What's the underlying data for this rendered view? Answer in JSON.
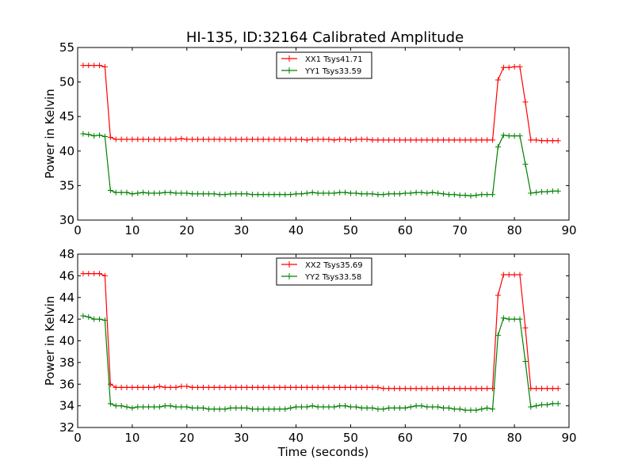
{
  "figure": {
    "title": "HI-135, ID:32164 Calibrated Amplitude",
    "background": "#ffffff"
  },
  "colors": {
    "series_a": "#ff0000",
    "series_b": "#008000",
    "axis": "#000000"
  },
  "chart_data": [
    {
      "type": "line",
      "title": "HI-135, ID:32164 Calibrated Amplitude",
      "xlabel": "",
      "ylabel": "Power in Kelvin",
      "xlim": [
        0,
        90
      ],
      "ylim": [
        30,
        55
      ],
      "xticks": [
        0,
        10,
        20,
        30,
        40,
        50,
        60,
        70,
        80,
        90
      ],
      "yticks": [
        30,
        35,
        40,
        45,
        50,
        55
      ],
      "grid": false,
      "legend_position": "top-center",
      "marker": "plus",
      "x": [
        1,
        2,
        3,
        4,
        5,
        6,
        7,
        8,
        9,
        10,
        11,
        12,
        13,
        14,
        15,
        16,
        17,
        18,
        19,
        20,
        21,
        22,
        23,
        24,
        25,
        26,
        27,
        28,
        29,
        30,
        31,
        32,
        33,
        34,
        35,
        36,
        37,
        38,
        39,
        40,
        41,
        42,
        43,
        44,
        45,
        46,
        47,
        48,
        49,
        50,
        51,
        52,
        53,
        54,
        55,
        56,
        57,
        58,
        59,
        60,
        61,
        62,
        63,
        64,
        65,
        66,
        67,
        68,
        69,
        70,
        71,
        72,
        73,
        74,
        75,
        76,
        77,
        78,
        79,
        80,
        81,
        82,
        83,
        84,
        85,
        86,
        87,
        88
      ],
      "series": [
        {
          "name": "XX1 Tsys41.71",
          "color": "#ff0000",
          "values": [
            52.4,
            52.4,
            52.4,
            52.4,
            52.2,
            42.0,
            41.7,
            41.7,
            41.7,
            41.7,
            41.7,
            41.7,
            41.7,
            41.7,
            41.7,
            41.7,
            41.7,
            41.7,
            41.8,
            41.7,
            41.7,
            41.7,
            41.7,
            41.7,
            41.7,
            41.7,
            41.7,
            41.7,
            41.7,
            41.7,
            41.7,
            41.7,
            41.7,
            41.7,
            41.7,
            41.7,
            41.7,
            41.7,
            41.7,
            41.7,
            41.7,
            41.6,
            41.7,
            41.7,
            41.7,
            41.7,
            41.6,
            41.7,
            41.7,
            41.6,
            41.7,
            41.7,
            41.7,
            41.6,
            41.6,
            41.6,
            41.6,
            41.6,
            41.6,
            41.6,
            41.6,
            41.6,
            41.6,
            41.6,
            41.6,
            41.6,
            41.6,
            41.6,
            41.6,
            41.6,
            41.6,
            41.6,
            41.6,
            41.6,
            41.6,
            41.6,
            50.3,
            52.1,
            52.1,
            52.2,
            52.2,
            47.1,
            41.6,
            41.6,
            41.5,
            41.5,
            41.5,
            41.5
          ]
        },
        {
          "name": "YY1 Tsys33.59",
          "color": "#008000",
          "values": [
            42.5,
            42.4,
            42.2,
            42.3,
            42.1,
            34.3,
            34.0,
            34.0,
            34.0,
            33.8,
            33.9,
            34.0,
            33.9,
            33.9,
            33.9,
            34.0,
            34.0,
            33.9,
            33.9,
            33.9,
            33.8,
            33.8,
            33.8,
            33.8,
            33.8,
            33.7,
            33.7,
            33.8,
            33.8,
            33.8,
            33.8,
            33.7,
            33.7,
            33.7,
            33.7,
            33.7,
            33.7,
            33.7,
            33.7,
            33.8,
            33.8,
            33.9,
            34.0,
            33.9,
            33.9,
            33.9,
            33.9,
            34.0,
            34.0,
            33.9,
            33.9,
            33.8,
            33.8,
            33.8,
            33.7,
            33.7,
            33.8,
            33.8,
            33.8,
            33.9,
            33.9,
            34.0,
            34.0,
            33.9,
            34.0,
            33.9,
            33.8,
            33.7,
            33.7,
            33.6,
            33.6,
            33.5,
            33.6,
            33.7,
            33.7,
            33.7,
            40.6,
            42.3,
            42.2,
            42.2,
            42.2,
            38.1,
            33.9,
            34.0,
            34.1,
            34.1,
            34.2,
            34.2
          ]
        }
      ]
    },
    {
      "type": "line",
      "title": "",
      "xlabel": "Time (seconds)",
      "ylabel": "Power in Kelvin",
      "xlim": [
        0,
        90
      ],
      "ylim": [
        32,
        48
      ],
      "xticks": [
        0,
        10,
        20,
        30,
        40,
        50,
        60,
        70,
        80,
        90
      ],
      "yticks": [
        32,
        34,
        36,
        38,
        40,
        42,
        44,
        46,
        48
      ],
      "grid": false,
      "legend_position": "top-center",
      "marker": "plus",
      "x": [
        1,
        2,
        3,
        4,
        5,
        6,
        7,
        8,
        9,
        10,
        11,
        12,
        13,
        14,
        15,
        16,
        17,
        18,
        19,
        20,
        21,
        22,
        23,
        24,
        25,
        26,
        27,
        28,
        29,
        30,
        31,
        32,
        33,
        34,
        35,
        36,
        37,
        38,
        39,
        40,
        41,
        42,
        43,
        44,
        45,
        46,
        47,
        48,
        49,
        50,
        51,
        52,
        53,
        54,
        55,
        56,
        57,
        58,
        59,
        60,
        61,
        62,
        63,
        64,
        65,
        66,
        67,
        68,
        69,
        70,
        71,
        72,
        73,
        74,
        75,
        76,
        77,
        78,
        79,
        80,
        81,
        82,
        83,
        84,
        85,
        86,
        87,
        88
      ],
      "series": [
        {
          "name": "XX2 Tsys35.69",
          "color": "#ff0000",
          "values": [
            46.2,
            46.2,
            46.2,
            46.2,
            46.0,
            36.0,
            35.7,
            35.7,
            35.7,
            35.7,
            35.7,
            35.7,
            35.7,
            35.7,
            35.8,
            35.7,
            35.7,
            35.7,
            35.8,
            35.8,
            35.7,
            35.7,
            35.7,
            35.7,
            35.7,
            35.7,
            35.7,
            35.7,
            35.7,
            35.7,
            35.7,
            35.7,
            35.7,
            35.7,
            35.7,
            35.7,
            35.7,
            35.7,
            35.7,
            35.7,
            35.7,
            35.7,
            35.7,
            35.7,
            35.7,
            35.7,
            35.7,
            35.7,
            35.7,
            35.7,
            35.7,
            35.7,
            35.7,
            35.7,
            35.7,
            35.6,
            35.6,
            35.6,
            35.6,
            35.6,
            35.6,
            35.6,
            35.6,
            35.6,
            35.6,
            35.6,
            35.6,
            35.6,
            35.6,
            35.6,
            35.6,
            35.6,
            35.6,
            35.6,
            35.6,
            35.6,
            44.2,
            46.1,
            46.1,
            46.1,
            46.1,
            41.2,
            35.6,
            35.6,
            35.6,
            35.6,
            35.6,
            35.6
          ]
        },
        {
          "name": "YY2 Tsys33.58",
          "color": "#008000",
          "values": [
            42.3,
            42.2,
            42.0,
            42.0,
            41.9,
            34.2,
            34.0,
            34.0,
            33.9,
            33.8,
            33.9,
            33.9,
            33.9,
            33.9,
            33.9,
            34.0,
            34.0,
            33.9,
            33.9,
            33.9,
            33.8,
            33.8,
            33.8,
            33.7,
            33.7,
            33.7,
            33.7,
            33.8,
            33.8,
            33.8,
            33.8,
            33.7,
            33.7,
            33.7,
            33.7,
            33.7,
            33.7,
            33.7,
            33.8,
            33.9,
            33.9,
            33.9,
            34.0,
            33.9,
            33.9,
            33.9,
            33.9,
            34.0,
            34.0,
            33.9,
            33.9,
            33.8,
            33.8,
            33.8,
            33.7,
            33.7,
            33.8,
            33.8,
            33.8,
            33.8,
            33.9,
            34.0,
            34.0,
            33.9,
            33.9,
            33.9,
            33.8,
            33.8,
            33.7,
            33.7,
            33.6,
            33.6,
            33.6,
            33.7,
            33.8,
            33.7,
            40.5,
            42.1,
            42.0,
            42.0,
            42.0,
            38.1,
            33.9,
            34.0,
            34.1,
            34.1,
            34.2,
            34.2
          ]
        }
      ]
    }
  ]
}
